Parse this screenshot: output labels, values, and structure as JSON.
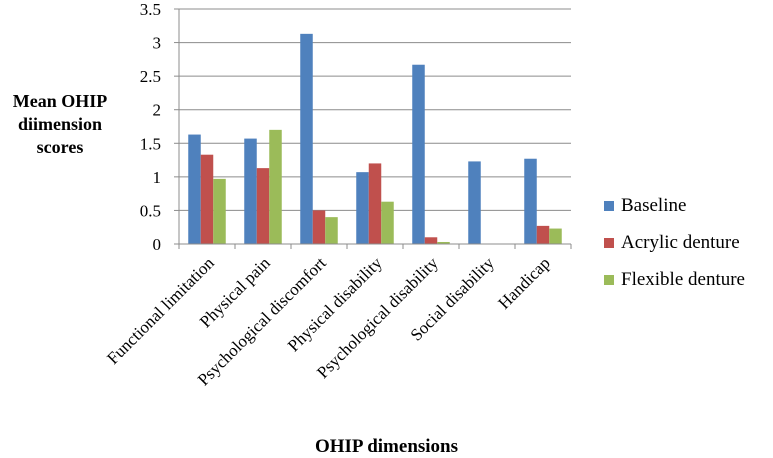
{
  "chart_data": {
    "type": "bar",
    "ylabel": "Mean OHIP diimension scores",
    "xlabel": "OHIP dimensions",
    "categories": [
      "Functional limitation",
      "Physical pain",
      "Psychological discomfort",
      "Physical disability",
      "Psychological disability",
      "Social disability",
      "Handicap"
    ],
    "series": [
      {
        "name": "Baseline",
        "color": "#4F81BD",
        "values": [
          1.63,
          1.57,
          3.13,
          1.07,
          2.67,
          1.23,
          1.27
        ]
      },
      {
        "name": "Acrylic denture",
        "color": "#C0504D",
        "values": [
          1.33,
          1.13,
          0.5,
          1.2,
          0.1,
          0.0,
          0.27
        ]
      },
      {
        "name": "Flexible denture",
        "color": "#9BBB59",
        "values": [
          0.97,
          1.7,
          0.4,
          0.63,
          0.03,
          0.0,
          0.23
        ]
      }
    ],
    "ylim": [
      0,
      3.5
    ],
    "yticks": [
      "0",
      "0.5",
      "1",
      "1.5",
      "2",
      "2.5",
      "3",
      "3.5"
    ],
    "grid": true,
    "legend": "right"
  }
}
